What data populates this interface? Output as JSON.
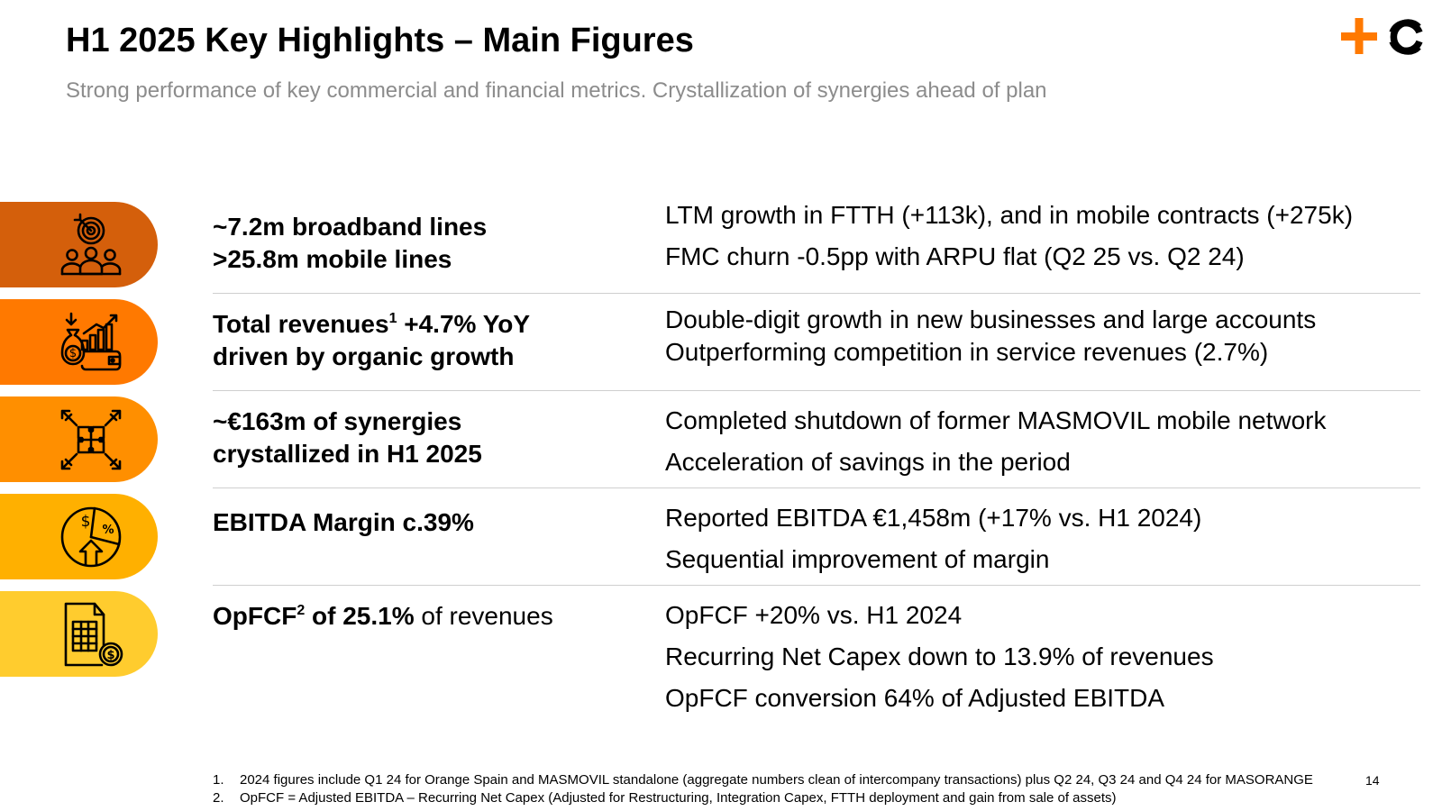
{
  "header": {
    "title": "H1 2025 Key Highlights – Main Figures",
    "subtitle": "Strong performance of key commercial and financial metrics. Crystallization of synergies ahead of plan"
  },
  "colors": {
    "band1": "#d45f0b",
    "band2": "#ff7900",
    "band3": "#ff8f00",
    "band4": "#ffb000",
    "band5": "#ffcc2e",
    "logo_orange": "#ff7900",
    "logo_dark": "#000000",
    "divider": "#cfcfcf",
    "subtitle": "#8c8c8c"
  },
  "rows": [
    {
      "icon": "target-people-icon",
      "headline_line1": "~7.2m broadband lines",
      "headline_line2": ">25.8m mobile lines",
      "details": [
        "LTM growth in FTTH (+113k), and in mobile contracts (+275k)",
        "FMC churn -0.5pp with ARPU flat (Q2 25 vs. Q2 24)"
      ]
    },
    {
      "icon": "money-growth-icon",
      "headline_part1": "Total revenues",
      "headline_sup": "1",
      "headline_part2": " +4.7% YoY",
      "headline_line2": "driven by organic growth",
      "details": [
        "Double-digit growth in new businesses and large accounts",
        "Outperforming competition in service revenues (2.7%)"
      ]
    },
    {
      "icon": "puzzle-synergy-icon",
      "headline_line1": "~€163m of synergies",
      "headline_line2": "crystallized in H1 2025",
      "details": [
        "Completed shutdown of former MASMOVIL mobile network",
        "Acceleration of savings in the period"
      ]
    },
    {
      "icon": "margin-pie-icon",
      "headline_line1": "EBITDA Margin c.39%",
      "details": [
        "Reported EBITDA €1,458m (+17% vs. H1 2024)",
        "Sequential improvement of margin"
      ]
    },
    {
      "icon": "cash-document-icon",
      "headline_part1": "OpFCF",
      "headline_sup": "2",
      "headline_part2": " of 25.1%",
      "headline_part3": " of revenues",
      "details": [
        "OpFCF +20% vs. H1 2024",
        "Recurring Net Capex down to 13.9% of revenues",
        "OpFCF conversion 64% of Adjusted EBITDA"
      ]
    }
  ],
  "footnotes": [
    {
      "num": "1.",
      "text": "2024 figures include Q1 24 for Orange Spain and MASMOVIL standalone (aggregate numbers clean of intercompany transactions) plus Q2 24, Q3 24 and Q4 24 for MASORANGE"
    },
    {
      "num": "2.",
      "text": "OpFCF = Adjusted EBITDA – Recurring Net Capex (Adjusted for Restructuring, Integration Capex, FTTH deployment and gain from sale of assets)"
    }
  ],
  "page_number": "14"
}
